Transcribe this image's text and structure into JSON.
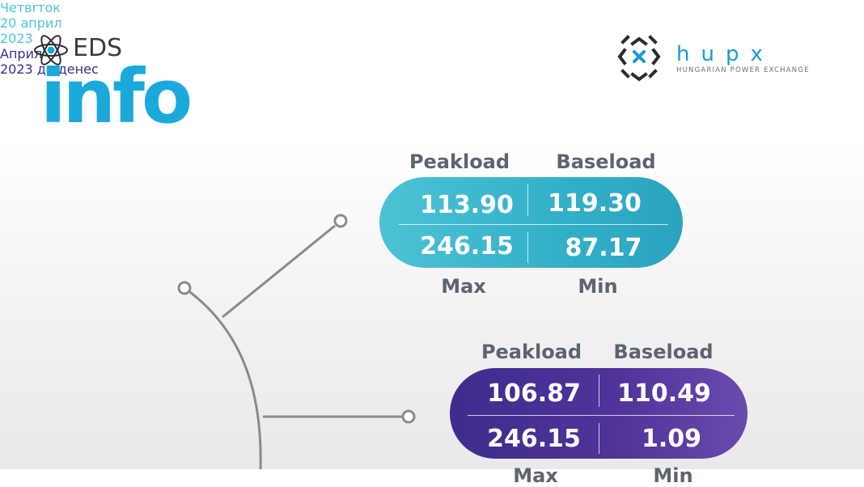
{
  "logo_eds": {
    "eds": "EDS",
    "info": "info"
  },
  "logo_hupx": {
    "name": "hupx",
    "tagline": "HUNGARIAN POWER EXCHANGE"
  },
  "daily": {
    "date_line1": "Четвrток",
    "date_line2": "20 април",
    "date_line3": "2023",
    "header_left": "Peakload",
    "header_right": "Baseload",
    "peakload": "113.90",
    "baseload": "119.30",
    "max": "246.15",
    "min": "87.17",
    "footer_left": "Max",
    "footer_right": "Min"
  },
  "monthly": {
    "date_line1": "Април",
    "date_line2": "2023 до денес",
    "header_left": "Peakload",
    "header_right": "Baseload",
    "peakload": "106.87",
    "baseload": "110.49",
    "max": "246.15",
    "min": "1.09",
    "footer_left": "Max",
    "footer_right": "Min"
  },
  "colors": {
    "eds_blue": "#1ba9dc",
    "daily_pill": "#32b0c7",
    "monthly_pill": "#4f3399",
    "header_gray": "#5c6470",
    "connector_gray": "#8a8a8a"
  }
}
